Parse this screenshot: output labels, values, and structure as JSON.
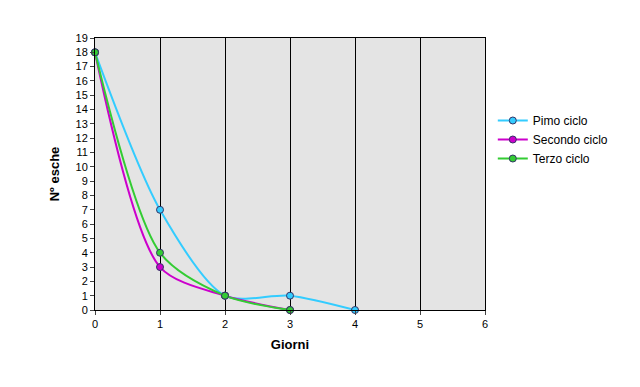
{
  "chart_data": {
    "type": "line",
    "x_label": "Giorni",
    "y_label": "Nº esche",
    "xlim": [
      0,
      6
    ],
    "xticks": [
      0,
      1,
      2,
      3,
      4,
      5,
      6
    ],
    "ylim": [
      0,
      19
    ],
    "yticks": [
      0,
      1,
      2,
      3,
      4,
      5,
      6,
      7,
      8,
      9,
      10,
      11,
      12,
      13,
      14,
      15,
      16,
      17,
      18,
      19
    ],
    "grid": true,
    "legend": "right",
    "marker": "circle",
    "line_style": "solid",
    "series": [
      {
        "name": "Pimo ciclo",
        "color": "#33ccff",
        "x": [
          0,
          1,
          2,
          3,
          4
        ],
        "values": [
          18,
          7,
          1,
          1,
          0
        ]
      },
      {
        "name": "Secondo ciclo",
        "color": "#cc00cc",
        "x": [
          0,
          1,
          2,
          3
        ],
        "values": [
          18,
          3,
          1,
          0
        ]
      },
      {
        "name": "Terzo ciclo",
        "color": "#33cc33",
        "x": [
          0,
          1,
          2,
          3
        ],
        "values": [
          18,
          4,
          1,
          0
        ]
      }
    ]
  }
}
